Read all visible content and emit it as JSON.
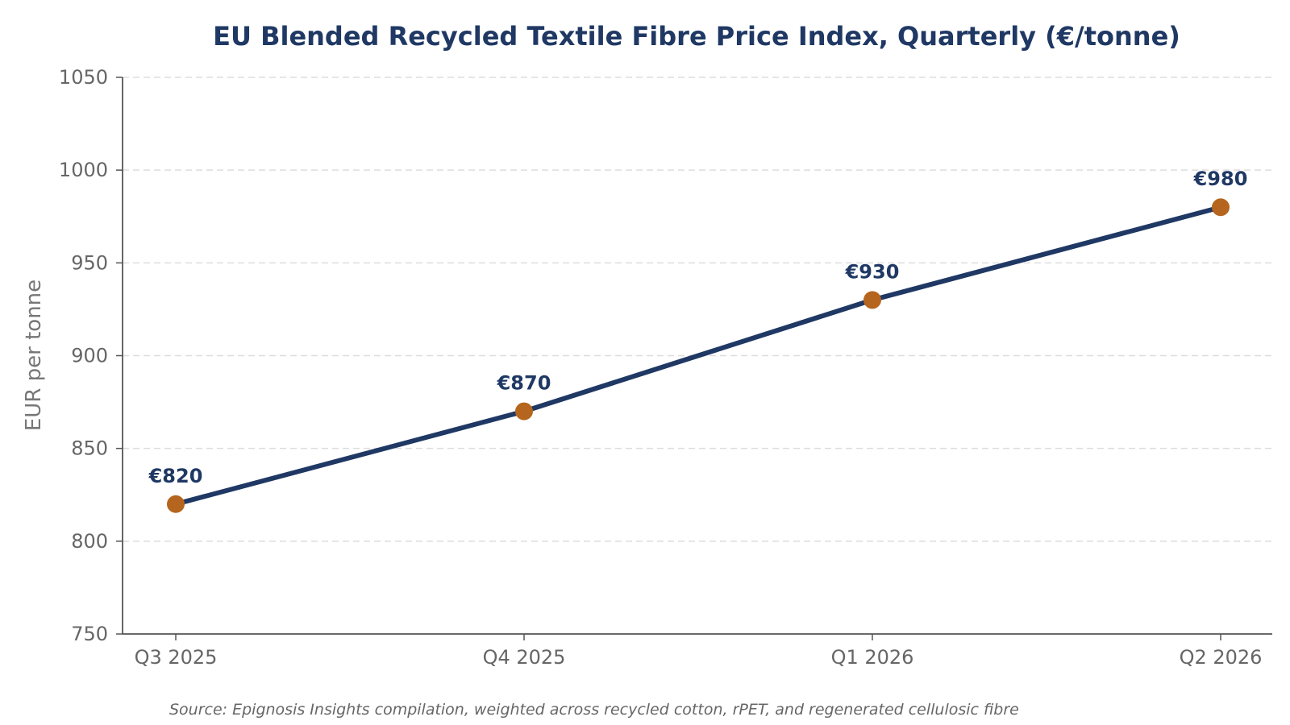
{
  "chart_data": {
    "type": "line",
    "title": "EU Blended Recycled Textile Fibre Price Index, Quarterly (€/tonne)",
    "xlabel": "",
    "ylabel": "EUR per tonne",
    "categories": [
      "Q3 2025",
      "Q4 2025",
      "Q1 2026",
      "Q2 2026"
    ],
    "series": [
      {
        "values": [
          820,
          870,
          930,
          980
        ],
        "data_labels": [
          "€820",
          "€870",
          "€930",
          "€980"
        ]
      }
    ],
    "ylim": [
      750,
      1050
    ],
    "yticks": [
      "750",
      "800",
      "850",
      "900",
      "950",
      "1000",
      "1050"
    ],
    "grid": "horizontal dashed",
    "colors": {
      "title": "#1f3864",
      "line": "#1f3864",
      "marker": "#b5651d",
      "data_label": "#1f3864",
      "grid": "#dddddd",
      "axis": "#555555"
    },
    "source": "Source: Epignosis Insights compilation, weighted across recycled cotton, rPET, and regenerated cellulosic fibre"
  }
}
